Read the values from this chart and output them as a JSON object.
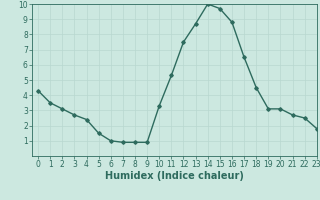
{
  "x": [
    0,
    1,
    2,
    3,
    4,
    5,
    6,
    7,
    8,
    9,
    10,
    11,
    12,
    13,
    14,
    15,
    16,
    17,
    18,
    19,
    20,
    21,
    22,
    23
  ],
  "y": [
    4.3,
    3.5,
    3.1,
    2.7,
    2.4,
    1.5,
    1.0,
    0.9,
    0.9,
    0.9,
    3.3,
    5.3,
    7.5,
    8.7,
    10.0,
    9.7,
    8.8,
    6.5,
    4.5,
    3.1,
    3.1,
    2.7,
    2.5,
    1.8
  ],
  "xlabel": "Humidex (Indice chaleur)",
  "xlim": [
    -0.5,
    23
  ],
  "ylim": [
    0,
    10
  ],
  "xticks": [
    0,
    1,
    2,
    3,
    4,
    5,
    6,
    7,
    8,
    9,
    10,
    11,
    12,
    13,
    14,
    15,
    16,
    17,
    18,
    19,
    20,
    21,
    22,
    23
  ],
  "yticks": [
    1,
    2,
    3,
    4,
    5,
    6,
    7,
    8,
    9,
    10
  ],
  "line_color": "#2e6b5e",
  "marker": "D",
  "marker_size": 1.8,
  "bg_color": "#cce8e0",
  "grid_color": "#b8d8d0",
  "tick_label_fontsize": 5.5,
  "xlabel_fontsize": 7.0,
  "line_width": 1.0
}
